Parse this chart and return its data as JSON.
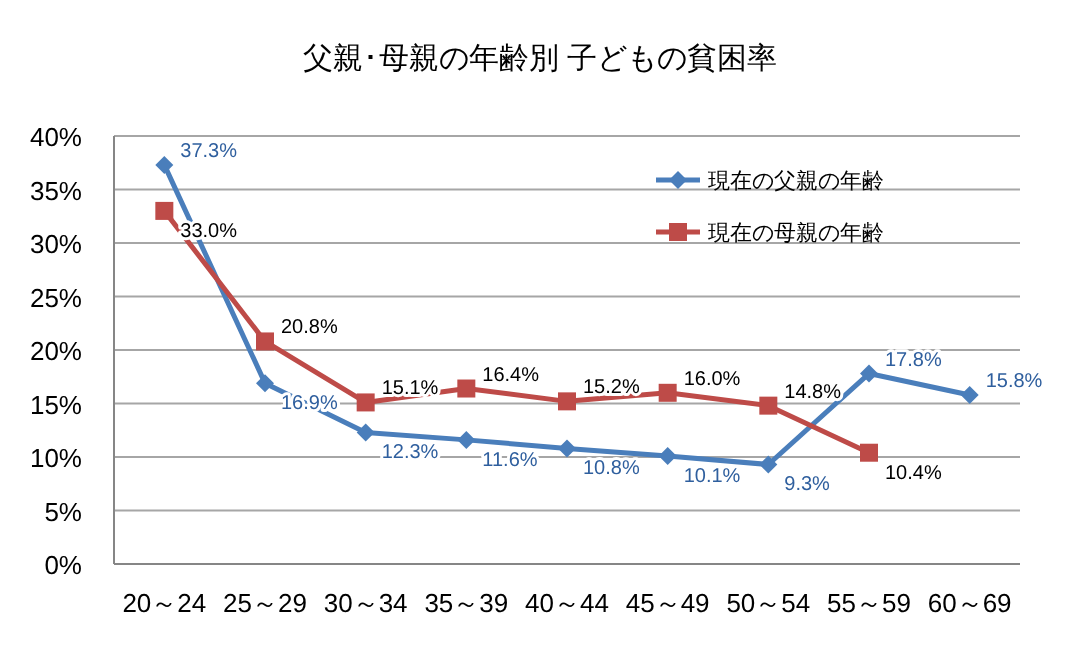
{
  "chart_data": {
    "type": "line",
    "title": "父親･母親の年齢別 子どもの貧困率",
    "categories": [
      "20～24",
      "25～29",
      "30～34",
      "35～39",
      "40～44",
      "45～49",
      "50～54",
      "55～59",
      "60～69"
    ],
    "series": [
      {
        "name": "現在の父親の年齢",
        "color": "#4a7ebb",
        "marker": "diamond",
        "values": [
          37.3,
          16.9,
          12.3,
          11.6,
          10.8,
          10.1,
          9.3,
          17.8,
          15.8
        ],
        "value_labels": [
          "37.3%",
          "16.9%",
          "12.3%",
          "11.6%",
          "10.8%",
          "10.1%",
          "9.3%",
          "17.8%",
          "15.8%"
        ]
      },
      {
        "name": "現在の母親の年齢",
        "color": "#be4b48",
        "marker": "square",
        "values": [
          33.0,
          20.8,
          15.1,
          16.4,
          15.2,
          16.0,
          14.8,
          10.4,
          null
        ],
        "value_labels": [
          "33.0%",
          "20.8%",
          "15.1%",
          "16.4%",
          "15.2%",
          "16.0%",
          "14.8%",
          "10.4%",
          null
        ]
      }
    ],
    "ylim": [
      0,
      40
    ],
    "yticks": [
      {
        "value": 0,
        "label": "0%"
      },
      {
        "value": 5,
        "label": "5%"
      },
      {
        "value": 10,
        "label": "10%"
      },
      {
        "value": 15,
        "label": "15%"
      },
      {
        "value": 20,
        "label": "20%"
      },
      {
        "value": 25,
        "label": "25%"
      },
      {
        "value": 30,
        "label": "30%"
      },
      {
        "value": 35,
        "label": "35%"
      },
      {
        "value": 40,
        "label": "40%"
      }
    ],
    "grid": "y",
    "legend": "top right",
    "line_style": "solid"
  }
}
